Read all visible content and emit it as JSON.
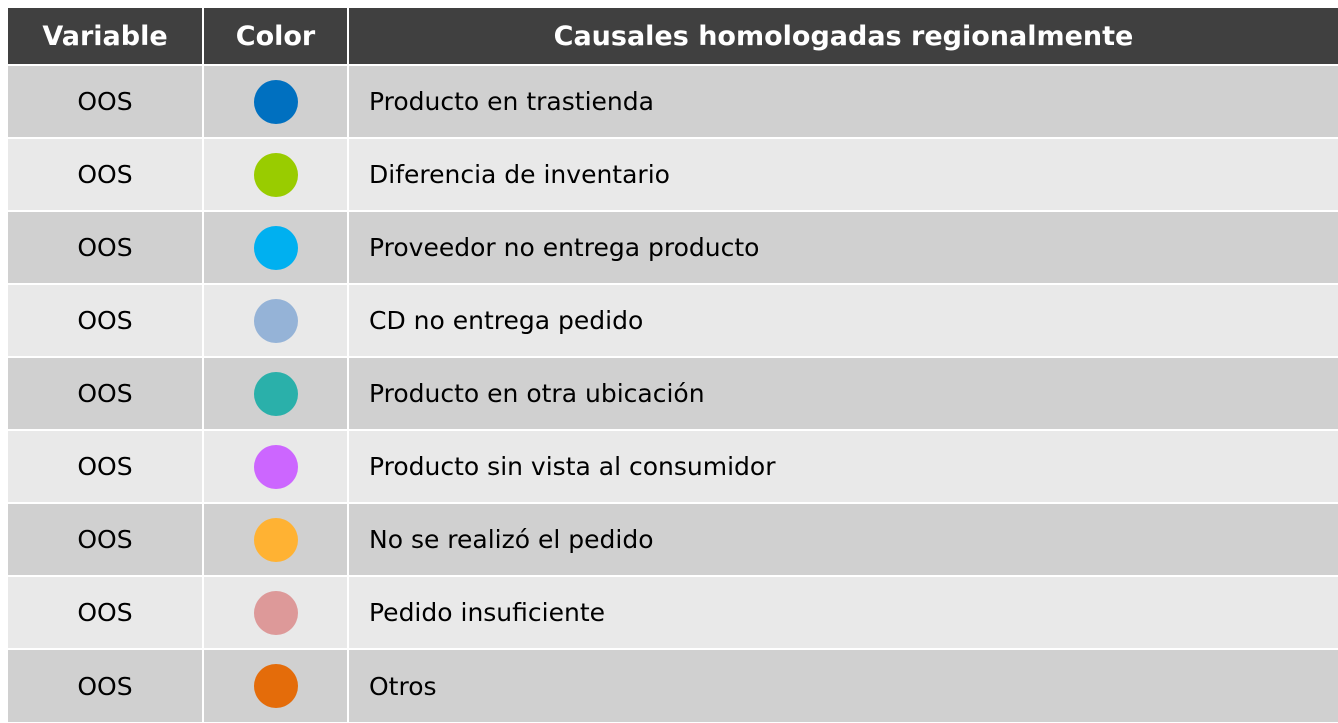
{
  "table": {
    "header": [
      "Variable",
      "Color",
      "Causales homologadas regionalmente"
    ],
    "rows": [
      {
        "variable": "OOS",
        "color": "#0070c0",
        "cause": "Producto en trastienda"
      },
      {
        "variable": "OOS",
        "color": "#99cc00",
        "cause": "Diferencia de inventario"
      },
      {
        "variable": "OOS",
        "color": "#00b0f0",
        "cause": "Proveedor no entrega producto"
      },
      {
        "variable": "OOS",
        "color": "#95b3d7",
        "cause": "CD no entrega pedido"
      },
      {
        "variable": "OOS",
        "color": "#2ab0aa",
        "cause": "Producto en otra ubicación"
      },
      {
        "variable": "OOS",
        "color": "#cc66ff",
        "cause": "Producto sin vista al consumidor"
      },
      {
        "variable": "OOS",
        "color": "#ffb233",
        "cause": "No se realizó el pedido"
      },
      {
        "variable": "OOS",
        "color": "#dd9999",
        "cause": "Pedido insuficiente"
      },
      {
        "variable": "OOS",
        "color": "#e46c0a",
        "cause": "Otros"
      }
    ]
  }
}
